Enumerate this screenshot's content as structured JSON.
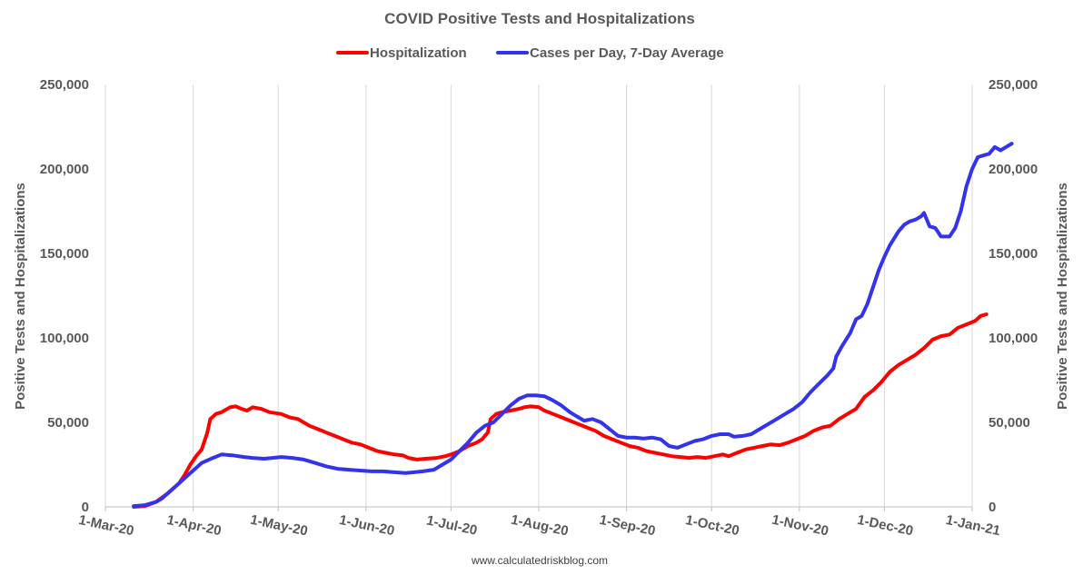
{
  "chart_data": {
    "type": "line",
    "title": "COVID Positive Tests and Hospitalizations",
    "ylabel_left": "Positive Tests and Hospitalizations",
    "ylabel_right": "Positive Tests and Hospitalizations",
    "source": "www.calculatedriskblog.com",
    "ylim": [
      0,
      250000
    ],
    "y_ticks": [
      "0",
      "50,000",
      "100,000",
      "150,000",
      "200,000",
      "250,000"
    ],
    "x_range_days": [
      0,
      306
    ],
    "x_ticks": [
      {
        "label": "1-Mar-20",
        "day": 0
      },
      {
        "label": "1-Apr-20",
        "day": 31
      },
      {
        "label": "1-May-20",
        "day": 61
      },
      {
        "label": "1-Jun-20",
        "day": 92
      },
      {
        "label": "1-Jul-20",
        "day": 122
      },
      {
        "label": "1-Aug-20",
        "day": 153
      },
      {
        "label": "1-Sep-20",
        "day": 184
      },
      {
        "label": "1-Oct-20",
        "day": 214
      },
      {
        "label": "1-Nov-20",
        "day": 245
      },
      {
        "label": "1-Dec-20",
        "day": 275
      },
      {
        "label": "1-Jan-21",
        "day": 306
      }
    ],
    "grid": "vertical",
    "legend_position": "top-center",
    "series": [
      {
        "name": "Hospitalization",
        "color": "#ff0000",
        "points": [
          [
            10,
            0
          ],
          [
            14,
            500
          ],
          [
            18,
            3000
          ],
          [
            22,
            8000
          ],
          [
            26,
            14000
          ],
          [
            28,
            19000
          ],
          [
            30,
            25000
          ],
          [
            32,
            30000
          ],
          [
            34,
            34000
          ],
          [
            36,
            44000
          ],
          [
            37,
            52000
          ],
          [
            39,
            55000
          ],
          [
            41,
            56000
          ],
          [
            44,
            59000
          ],
          [
            46,
            59500
          ],
          [
            48,
            58000
          ],
          [
            50,
            57000
          ],
          [
            52,
            59000
          ],
          [
            55,
            58000
          ],
          [
            58,
            56000
          ],
          [
            62,
            55000
          ],
          [
            65,
            53000
          ],
          [
            68,
            52000
          ],
          [
            70,
            50000
          ],
          [
            72,
            48000
          ],
          [
            75,
            46000
          ],
          [
            78,
            44000
          ],
          [
            81,
            42000
          ],
          [
            84,
            40000
          ],
          [
            87,
            38000
          ],
          [
            90,
            37000
          ],
          [
            93,
            35000
          ],
          [
            96,
            33000
          ],
          [
            99,
            32000
          ],
          [
            102,
            31000
          ],
          [
            105,
            30500
          ],
          [
            107,
            29000
          ],
          [
            110,
            28000
          ],
          [
            113,
            28500
          ],
          [
            117,
            29000
          ],
          [
            120,
            30000
          ],
          [
            122,
            31000
          ],
          [
            125,
            33000
          ],
          [
            128,
            36000
          ],
          [
            131,
            38000
          ],
          [
            133,
            40000
          ],
          [
            135,
            44000
          ],
          [
            136,
            52000
          ],
          [
            138,
            55000
          ],
          [
            140,
            56000
          ],
          [
            143,
            57000
          ],
          [
            146,
            58000
          ],
          [
            148,
            59000
          ],
          [
            150,
            59500
          ],
          [
            153,
            59000
          ],
          [
            155,
            57000
          ],
          [
            158,
            55000
          ],
          [
            161,
            53000
          ],
          [
            164,
            51000
          ],
          [
            167,
            49000
          ],
          [
            170,
            47000
          ],
          [
            173,
            45000
          ],
          [
            176,
            42000
          ],
          [
            179,
            40000
          ],
          [
            182,
            38000
          ],
          [
            185,
            36000
          ],
          [
            188,
            35000
          ],
          [
            191,
            33000
          ],
          [
            194,
            32000
          ],
          [
            197,
            31000
          ],
          [
            200,
            30000
          ],
          [
            203,
            29500
          ],
          [
            206,
            29000
          ],
          [
            209,
            29500
          ],
          [
            212,
            29000
          ],
          [
            215,
            30000
          ],
          [
            218,
            31000
          ],
          [
            220,
            30000
          ],
          [
            223,
            32000
          ],
          [
            226,
            34000
          ],
          [
            229,
            35000
          ],
          [
            232,
            36000
          ],
          [
            235,
            37000
          ],
          [
            238,
            36500
          ],
          [
            241,
            38000
          ],
          [
            244,
            40000
          ],
          [
            247,
            42000
          ],
          [
            250,
            45000
          ],
          [
            253,
            47000
          ],
          [
            256,
            48000
          ],
          [
            259,
            52000
          ],
          [
            262,
            55000
          ],
          [
            265,
            58000
          ],
          [
            268,
            65000
          ],
          [
            271,
            69000
          ],
          [
            274,
            74000
          ],
          [
            277,
            80000
          ],
          [
            280,
            84000
          ],
          [
            283,
            87000
          ],
          [
            286,
            90000
          ],
          [
            289,
            94000
          ],
          [
            292,
            99000
          ],
          [
            295,
            101000
          ],
          [
            298,
            102000
          ],
          [
            301,
            106000
          ],
          [
            304,
            108000
          ],
          [
            307,
            110000
          ],
          [
            309,
            113000
          ],
          [
            311,
            114000
          ]
        ]
      },
      {
        "name": "Cases per Day, 7-Day Average",
        "color": "#3333ee",
        "points": [
          [
            10,
            500
          ],
          [
            14,
            1000
          ],
          [
            18,
            3000
          ],
          [
            20,
            5000
          ],
          [
            22,
            8000
          ],
          [
            26,
            14000
          ],
          [
            30,
            20000
          ],
          [
            34,
            26000
          ],
          [
            38,
            29000
          ],
          [
            41,
            31000
          ],
          [
            45,
            30500
          ],
          [
            49,
            29500
          ],
          [
            52,
            29000
          ],
          [
            56,
            28500
          ],
          [
            59,
            29000
          ],
          [
            62,
            29500
          ],
          [
            66,
            29000
          ],
          [
            70,
            28000
          ],
          [
            74,
            26000
          ],
          [
            78,
            24000
          ],
          [
            82,
            22500
          ],
          [
            86,
            22000
          ],
          [
            90,
            21500
          ],
          [
            94,
            21000
          ],
          [
            98,
            21000
          ],
          [
            102,
            20500
          ],
          [
            106,
            20000
          ],
          [
            109,
            20500
          ],
          [
            112,
            21000
          ],
          [
            116,
            22000
          ],
          [
            119,
            25000
          ],
          [
            122,
            28000
          ],
          [
            125,
            33000
          ],
          [
            128,
            38000
          ],
          [
            131,
            44000
          ],
          [
            134,
            48000
          ],
          [
            137,
            50000
          ],
          [
            140,
            55000
          ],
          [
            143,
            60000
          ],
          [
            146,
            64000
          ],
          [
            149,
            66000
          ],
          [
            152,
            66000
          ],
          [
            155,
            65500
          ],
          [
            158,
            63000
          ],
          [
            161,
            60000
          ],
          [
            164,
            56000
          ],
          [
            167,
            53000
          ],
          [
            169,
            51000
          ],
          [
            172,
            52000
          ],
          [
            175,
            50000
          ],
          [
            178,
            46000
          ],
          [
            181,
            42000
          ],
          [
            184,
            41000
          ],
          [
            187,
            41000
          ],
          [
            190,
            40500
          ],
          [
            193,
            41000
          ],
          [
            196,
            40000
          ],
          [
            199,
            36000
          ],
          [
            202,
            35000
          ],
          [
            205,
            37000
          ],
          [
            208,
            39000
          ],
          [
            211,
            40000
          ],
          [
            214,
            42000
          ],
          [
            217,
            43000
          ],
          [
            220,
            43000
          ],
          [
            222,
            41500
          ],
          [
            225,
            42000
          ],
          [
            228,
            43000
          ],
          [
            231,
            46000
          ],
          [
            234,
            49000
          ],
          [
            237,
            52000
          ],
          [
            240,
            55000
          ],
          [
            243,
            58000
          ],
          [
            246,
            62000
          ],
          [
            249,
            68000
          ],
          [
            252,
            73000
          ],
          [
            255,
            78000
          ],
          [
            257,
            82000
          ],
          [
            258,
            89000
          ],
          [
            260,
            95000
          ],
          [
            263,
            103000
          ],
          [
            265,
            111000
          ],
          [
            267,
            113000
          ],
          [
            269,
            120000
          ],
          [
            271,
            130000
          ],
          [
            273,
            140000
          ],
          [
            275,
            148000
          ],
          [
            277,
            155000
          ],
          [
            280,
            163000
          ],
          [
            282,
            167000
          ],
          [
            284,
            169000
          ],
          [
            286,
            170000
          ],
          [
            288,
            172000
          ],
          [
            289,
            174000
          ],
          [
            291,
            166000
          ],
          [
            293,
            165000
          ],
          [
            295,
            160000
          ],
          [
            298,
            160000
          ],
          [
            300,
            165000
          ],
          [
            302,
            175000
          ],
          [
            304,
            190000
          ],
          [
            306,
            200000
          ],
          [
            308,
            207000
          ],
          [
            310,
            208000
          ],
          [
            312,
            209000
          ],
          [
            314,
            213000
          ],
          [
            316,
            211000
          ],
          [
            318,
            213000
          ],
          [
            320,
            215000
          ]
        ]
      }
    ]
  }
}
